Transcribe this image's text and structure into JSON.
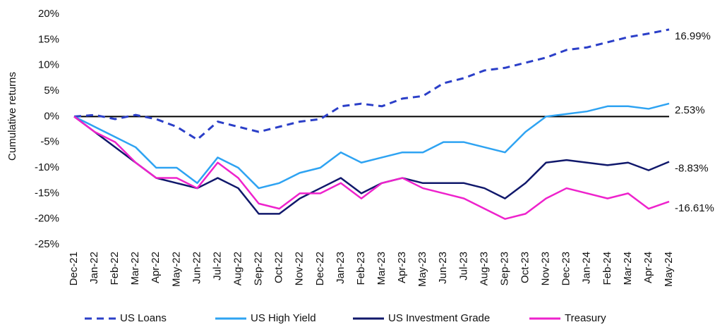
{
  "chart_data": {
    "type": "line",
    "y_label": "Cumulative returns",
    "categories": [
      "Dec-21",
      "Jan-22",
      "Feb-22",
      "Mar-22",
      "Apr-22",
      "May-22",
      "Jun-22",
      "Jul-22",
      "Aug-22",
      "Sep-22",
      "Oct-22",
      "Nov-22",
      "Dec-22",
      "Jan-23",
      "Feb-23",
      "Mar-23",
      "Apr-23",
      "May-23",
      "Jun-23",
      "Jul-23",
      "Aug-23",
      "Sep-23",
      "Oct-23",
      "Nov-23",
      "Dec-23",
      "Jan-24",
      "Feb-24",
      "Mar-24",
      "Apr-24",
      "May-24"
    ],
    "series": [
      {
        "name": "US Loans",
        "color": "#2b3fc8",
        "dashed": true,
        "values": [
          0,
          0.3,
          -0.5,
          0.3,
          -0.5,
          -2,
          -4.5,
          -1,
          -2,
          -3,
          -2,
          -1,
          -0.5,
          2,
          2.5,
          2,
          3.5,
          4,
          6.5,
          7.5,
          9,
          9.5,
          10.5,
          11.5,
          13,
          13.5,
          14.5,
          15.5,
          16.2,
          16.99
        ],
        "value_labels": [
          null,
          null,
          null,
          null,
          null,
          null,
          null,
          null,
          null,
          null,
          null,
          null,
          null,
          null,
          null,
          null,
          null,
          null,
          null,
          null,
          null,
          null,
          null,
          null,
          null,
          null,
          null,
          null,
          null,
          "16.99%"
        ]
      },
      {
        "name": "US High Yield",
        "color": "#2ea3f2",
        "dashed": false,
        "values": [
          0,
          -2,
          -4,
          -6,
          -10,
          -10,
          -13,
          -8,
          -10,
          -14,
          -13,
          -11,
          -10,
          -7,
          -9,
          -8,
          -7,
          -7,
          -5,
          -5,
          -6,
          -7,
          -3,
          0,
          0.5,
          1,
          2,
          2,
          1.5,
          2.53
        ],
        "value_labels": [
          null,
          null,
          null,
          null,
          null,
          null,
          null,
          null,
          null,
          null,
          null,
          null,
          null,
          null,
          null,
          null,
          null,
          null,
          null,
          null,
          null,
          null,
          null,
          null,
          null,
          null,
          null,
          null,
          null,
          "2.53%"
        ]
      },
      {
        "name": "US Investment Grade",
        "color": "#10186b",
        "dashed": false,
        "values": [
          0,
          -3,
          -6,
          -9,
          -12,
          -13,
          -14,
          -12,
          -14,
          -19,
          -19,
          -16,
          -14,
          -12,
          -15,
          -13,
          -12,
          -13,
          -13,
          -13,
          -14,
          -16,
          -13,
          -9,
          -8.5,
          -9,
          -9.5,
          -9,
          -10.5,
          -8.83
        ],
        "value_labels": [
          null,
          null,
          null,
          null,
          null,
          null,
          null,
          null,
          null,
          null,
          null,
          null,
          null,
          null,
          null,
          null,
          null,
          null,
          null,
          null,
          null,
          null,
          null,
          null,
          null,
          null,
          null,
          null,
          null,
          "-8.83%"
        ]
      },
      {
        "name": "Treasury",
        "color": "#ee22cc",
        "dashed": false,
        "values": [
          0,
          -3,
          -5,
          -9,
          -12,
          -12,
          -14,
          -9,
          -12,
          -17,
          -18,
          -15,
          -15,
          -13,
          -16,
          -13,
          -12,
          -14,
          -15,
          -16,
          -18,
          -20,
          -19,
          -16,
          -14,
          -15,
          -16,
          -15,
          -18,
          -16.61
        ],
        "value_labels": [
          null,
          null,
          null,
          null,
          null,
          null,
          null,
          null,
          null,
          null,
          null,
          null,
          null,
          null,
          null,
          null,
          null,
          null,
          null,
          null,
          null,
          null,
          null,
          null,
          null,
          null,
          null,
          null,
          null,
          "-16.61%"
        ]
      }
    ],
    "ylim": [
      -25,
      20
    ],
    "yticks": [
      {
        "value": -25,
        "label": "-25%"
      },
      {
        "value": -20,
        "label": "-20%"
      },
      {
        "value": -15,
        "label": "-15%"
      },
      {
        "value": -10,
        "label": "-10%"
      },
      {
        "value": -5,
        "label": "-5%"
      },
      {
        "value": 0,
        "label": "0%"
      },
      {
        "value": 5,
        "label": "5%"
      },
      {
        "value": 10,
        "label": "10%"
      },
      {
        "value": 15,
        "label": "15%"
      },
      {
        "value": 20,
        "label": "20%"
      }
    ],
    "zero_line": true,
    "legend": "bottom"
  }
}
